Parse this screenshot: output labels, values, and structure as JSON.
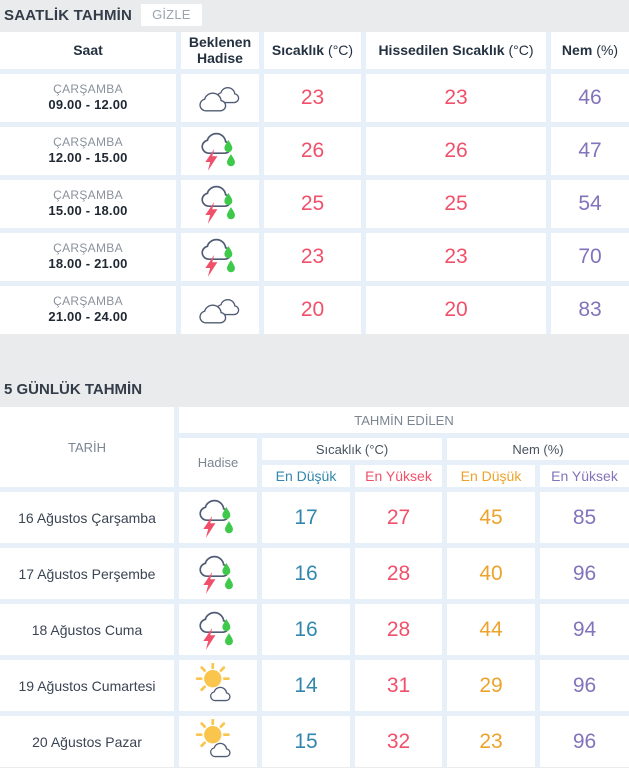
{
  "hourly": {
    "title": "SAATLİK TAHMİN",
    "hide_button": "GİZLE",
    "columns": {
      "time": "Saat",
      "event_line1": "Beklenen",
      "event_line2": "Hadise",
      "temp": "Sıcaklık",
      "temp_unit": "(°C)",
      "feels": "Hissedilen Sıcaklık",
      "feels_unit": "(°C)",
      "humidity": "Nem",
      "humidity_unit": "(%)"
    },
    "rows": [
      {
        "day": "ÇARŞAMBA",
        "time": "09.00 - 12.00",
        "icon": "clouds-icon",
        "temp": "23",
        "feels": "23",
        "humidity": "46"
      },
      {
        "day": "ÇARŞAMBA",
        "time": "12.00 - 15.00",
        "icon": "thunderstorm-icon",
        "temp": "26",
        "feels": "26",
        "humidity": "47"
      },
      {
        "day": "ÇARŞAMBA",
        "time": "15.00 - 18.00",
        "icon": "thunderstorm-icon",
        "temp": "25",
        "feels": "25",
        "humidity": "54"
      },
      {
        "day": "ÇARŞAMBA",
        "time": "18.00 - 21.00",
        "icon": "thunderstorm-icon",
        "temp": "23",
        "feels": "23",
        "humidity": "70"
      },
      {
        "day": "ÇARŞAMBA",
        "time": "21.00 - 24.00",
        "icon": "clouds-icon",
        "temp": "20",
        "feels": "20",
        "humidity": "83"
      }
    ]
  },
  "daily": {
    "title": "5 GÜNLÜK TAHMİN",
    "columns": {
      "date": "TARİH",
      "predicted": "TAHMİN EDİLEN",
      "event": "Hadise",
      "temp": "Sıcaklık (°C)",
      "humidity": "Nem (%)",
      "min": "En Düşük",
      "max": "En Yüksek"
    },
    "rows": [
      {
        "date": "16 Ağustos Çarşamba",
        "icon": "thunderstorm-icon",
        "temp_min": "17",
        "temp_max": "27",
        "hum_min": "45",
        "hum_max": "85"
      },
      {
        "date": "17 Ağustos Perşembe",
        "icon": "thunderstorm-icon",
        "temp_min": "16",
        "temp_max": "28",
        "hum_min": "40",
        "hum_max": "96"
      },
      {
        "date": "18 Ağustos Cuma",
        "icon": "thunderstorm-icon",
        "temp_min": "16",
        "temp_max": "28",
        "hum_min": "44",
        "hum_max": "94"
      },
      {
        "date": "19 Ağustos Cumartesi",
        "icon": "partly-sunny-icon",
        "temp_min": "14",
        "temp_max": "31",
        "hum_min": "29",
        "hum_max": "96"
      },
      {
        "date": "20 Ağustos Pazar",
        "icon": "partly-sunny-icon",
        "temp_min": "15",
        "temp_max": "32",
        "hum_min": "23",
        "hum_max": "96"
      }
    ]
  },
  "colors": {
    "temperature": "#f0506a",
    "humidity": "#8273bb",
    "temp_min": "#3187ac",
    "temp_max": "#f0506a",
    "hum_min": "#eda32b",
    "hum_max": "#8273bb",
    "rain_drop": "#3fc94b",
    "lightning": "#f0506a",
    "sun": "#f9c54d",
    "icon_outline": "#505c74",
    "cell_gap": "#e7f0f8",
    "page_background": "#e9ebed"
  }
}
